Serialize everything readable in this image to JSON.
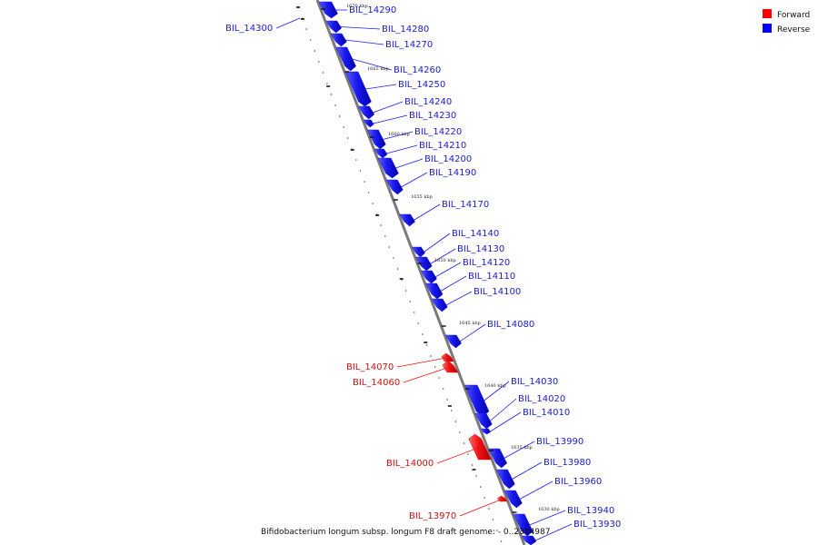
{
  "legend": {
    "forward": {
      "label": "Forward",
      "color": "#ff0000"
    },
    "reverse": {
      "label": "Reverse",
      "color": "#0000ff"
    }
  },
  "caption": "Bifidobacterium longum subsp. longum F8 draft genome: - 0..2384987",
  "colors": {
    "forward": "#ee1111",
    "reverse": "#1a1aee",
    "axis": "#7a7a7a"
  },
  "kbp_markers": [
    "1670 kbp",
    "1665 kbp",
    "1660 kbp",
    "1655 kbp",
    "1650 kbp",
    "1645 kbp",
    "1640 kbp",
    "1635 kbp",
    "1630 kbp"
  ],
  "genes": [
    {
      "name": "BIL_14300",
      "strand": "reverse"
    },
    {
      "name": "BIL_14290",
      "strand": "reverse"
    },
    {
      "name": "BIL_14280",
      "strand": "reverse"
    },
    {
      "name": "BIL_14270",
      "strand": "reverse"
    },
    {
      "name": "BIL_14260",
      "strand": "reverse"
    },
    {
      "name": "BIL_14250",
      "strand": "reverse"
    },
    {
      "name": "BIL_14240",
      "strand": "reverse"
    },
    {
      "name": "BIL_14230",
      "strand": "reverse"
    },
    {
      "name": "BIL_14220",
      "strand": "reverse"
    },
    {
      "name": "BIL_14210",
      "strand": "reverse"
    },
    {
      "name": "BIL_14200",
      "strand": "reverse"
    },
    {
      "name": "BIL_14190",
      "strand": "reverse"
    },
    {
      "name": "BIL_14170",
      "strand": "reverse"
    },
    {
      "name": "BIL_14140",
      "strand": "reverse"
    },
    {
      "name": "BIL_14130",
      "strand": "reverse"
    },
    {
      "name": "BIL_14120",
      "strand": "reverse"
    },
    {
      "name": "BIL_14110",
      "strand": "reverse"
    },
    {
      "name": "BIL_14100",
      "strand": "reverse"
    },
    {
      "name": "BIL_14080",
      "strand": "reverse"
    },
    {
      "name": "BIL_14070",
      "strand": "forward"
    },
    {
      "name": "BIL_14060",
      "strand": "forward"
    },
    {
      "name": "BIL_14030",
      "strand": "reverse"
    },
    {
      "name": "BIL_14020",
      "strand": "reverse"
    },
    {
      "name": "BIL_14010",
      "strand": "reverse"
    },
    {
      "name": "BIL_14000",
      "strand": "forward"
    },
    {
      "name": "BIL_13990",
      "strand": "reverse"
    },
    {
      "name": "BIL_13980",
      "strand": "reverse"
    },
    {
      "name": "BIL_13960",
      "strand": "reverse"
    },
    {
      "name": "BIL_13970",
      "strand": "forward"
    },
    {
      "name": "BIL_13940",
      "strand": "reverse"
    },
    {
      "name": "BIL_13930",
      "strand": "reverse"
    }
  ]
}
